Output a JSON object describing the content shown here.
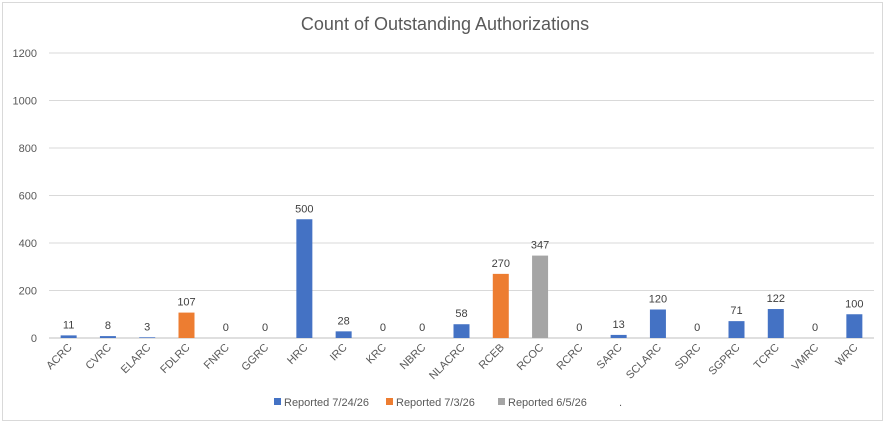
{
  "chart_data": {
    "type": "bar",
    "title": "Count of Outstanding Authorizations",
    "xlabel": "",
    "ylabel": "",
    "ylim": [
      0,
      1200
    ],
    "yticks": [
      0,
      200,
      400,
      600,
      800,
      1000,
      1200
    ],
    "grid": true,
    "legend_position": "bottom",
    "categories": [
      "ACRC",
      "CVRC",
      "ELARC",
      "FDLRC",
      "FNRC",
      "GGRC",
      "HRC",
      "IRC",
      "KRC",
      "NBRC",
      "NLACRC",
      "RCEB",
      "RCOC",
      "RCRC",
      "SARC",
      "SCLARC",
      "SDRC",
      "SGPRC",
      "TCRC",
      "VMRC",
      "WRC"
    ],
    "values": [
      11,
      8,
      3,
      107,
      0,
      0,
      500,
      28,
      0,
      0,
      58,
      270,
      347,
      0,
      13,
      120,
      0,
      71,
      122,
      0,
      100
    ],
    "bar_series": [
      0,
      0,
      0,
      1,
      0,
      0,
      0,
      0,
      0,
      0,
      0,
      1,
      2,
      0,
      0,
      0,
      0,
      0,
      0,
      0,
      0
    ],
    "series": [
      {
        "name": "Reported 7/24/26",
        "color": "#4472c4"
      },
      {
        "name": "Reported 7/3/26",
        "color": "#ed7d31"
      },
      {
        "name": "Reported 6/5/26",
        "color": "#a5a5a5"
      }
    ],
    "legend_extra": "."
  }
}
